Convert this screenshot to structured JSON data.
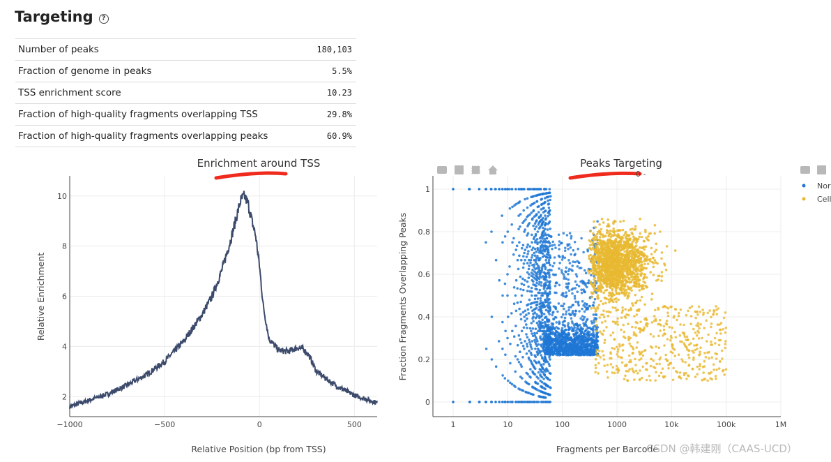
{
  "section": {
    "title": "Targeting",
    "help_icon": "question-circle-icon"
  },
  "metrics": [
    {
      "label": "Number of peaks",
      "value": "180,103"
    },
    {
      "label": "Fraction of genome in peaks",
      "value": "5.5%"
    },
    {
      "label": "TSS enrichment score",
      "value": "10.23"
    },
    {
      "label": "Fraction of high-quality fragments overlapping TSS",
      "value": "29.8%"
    },
    {
      "label": "Fraction of high-quality fragments overlapping peaks",
      "value": "60.9%"
    }
  ],
  "charts": {
    "tss": {
      "title": "Enrichment around TSS",
      "xlabel": "Relative Position (bp from TSS)",
      "ylabel": "Relative Enrichment",
      "xticks": [
        "−1000",
        "−500",
        "0",
        "500"
      ],
      "yticks": [
        "2",
        "4",
        "6",
        "8",
        "10"
      ]
    },
    "peaks": {
      "title": "Peaks Targeting",
      "subtitle_visible_fragment": "0 -",
      "xlabel": "Fragments per Barcode",
      "ylabel": "Fraction Fragments Overlapping Peaks",
      "xticks": [
        "1",
        "10",
        "100",
        "1000",
        "10k",
        "100k",
        "1M"
      ],
      "yticks": [
        "0",
        "0.2",
        "0.4",
        "0.6",
        "0.8",
        "1"
      ],
      "legend": [
        "Nor",
        "Cell"
      ],
      "modebar_icons": [
        "camera-icon",
        "zoom-in-icon",
        "select-icon",
        "home-icon"
      ]
    }
  },
  "chart_data": [
    {
      "type": "line",
      "title": "Enrichment around TSS",
      "xlabel": "Relative Position (bp from TSS)",
      "ylabel": "Relative Enrichment",
      "xlim": [
        -1000,
        620
      ],
      "ylim": [
        1.2,
        10.8
      ],
      "color": "#3c4a6b",
      "series": [
        {
          "x": [
            -1000,
            -900,
            -800,
            -700,
            -600,
            -500,
            -400,
            -300,
            -250,
            -200,
            -150,
            -120,
            -100,
            -80,
            -60,
            -40,
            -20,
            0,
            20,
            50,
            100,
            150,
            200,
            230,
            260,
            300,
            400,
            500,
            620
          ],
          "y": [
            1.6,
            1.85,
            2.1,
            2.45,
            2.85,
            3.4,
            4.2,
            5.3,
            6.0,
            7.0,
            8.3,
            9.2,
            9.8,
            10.0,
            9.7,
            9.0,
            8.4,
            7.2,
            5.6,
            4.3,
            3.85,
            3.8,
            3.95,
            3.9,
            3.65,
            3.0,
            2.45,
            2.05,
            1.75
          ]
        }
      ]
    },
    {
      "type": "scatter",
      "title": "Peaks Targeting",
      "xlabel": "Fragments per Barcode",
      "ylabel": "Fraction Fragments Overlapping Peaks",
      "xscale": "log",
      "xlim": [
        1,
        1000000
      ],
      "ylim": [
        0,
        1
      ],
      "legend_position": "top-right",
      "series": [
        {
          "name": "Nor",
          "color": "#1f77d4",
          "description": "non-cell barcodes, mostly below ~300 fragments"
        },
        {
          "name": "Cell",
          "color": "#e8b830",
          "description": "cell barcodes, ~300 to ~300k fragments, centered near 0.65"
        }
      ]
    }
  ]
}
